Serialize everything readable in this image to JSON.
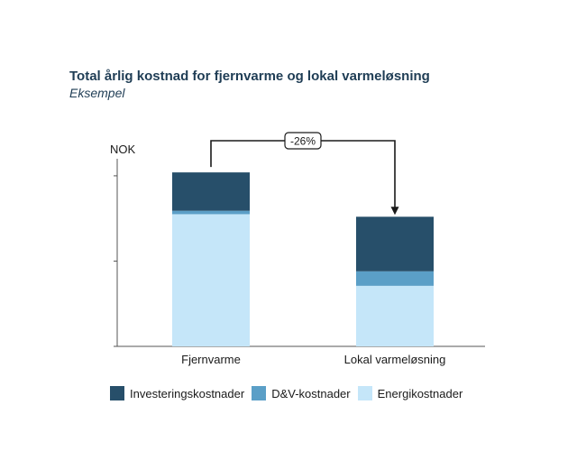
{
  "chart_data": {
    "type": "bar",
    "stacked": true,
    "title": "Total årlig kostnad for fjernvarme og lokal varmeløsning",
    "subtitle": "Eksempel",
    "ylabel": "NOK",
    "xlabel": "",
    "categories": [
      "Fjernvarme",
      "Lokal varmeløsning"
    ],
    "series": [
      {
        "name": "Energikostnader",
        "color": "#c5e6f9",
        "values": [
          77.5,
          35.5
        ]
      },
      {
        "name": "D&V-kostnader",
        "color": "#5b9fc7",
        "values": [
          2.0,
          8.5
        ]
      },
      {
        "name": "Investeringskostnader",
        "color": "#274f6a",
        "values": [
          22.5,
          32.0
        ]
      }
    ],
    "ylim": [
      0,
      110
    ],
    "y_ticks": [
      0,
      50,
      100
    ],
    "grid": false,
    "legend_position": "bottom",
    "annotation": {
      "text": "-26%",
      "from": "Fjernvarme",
      "to": "Lokal varmeløsning"
    }
  }
}
